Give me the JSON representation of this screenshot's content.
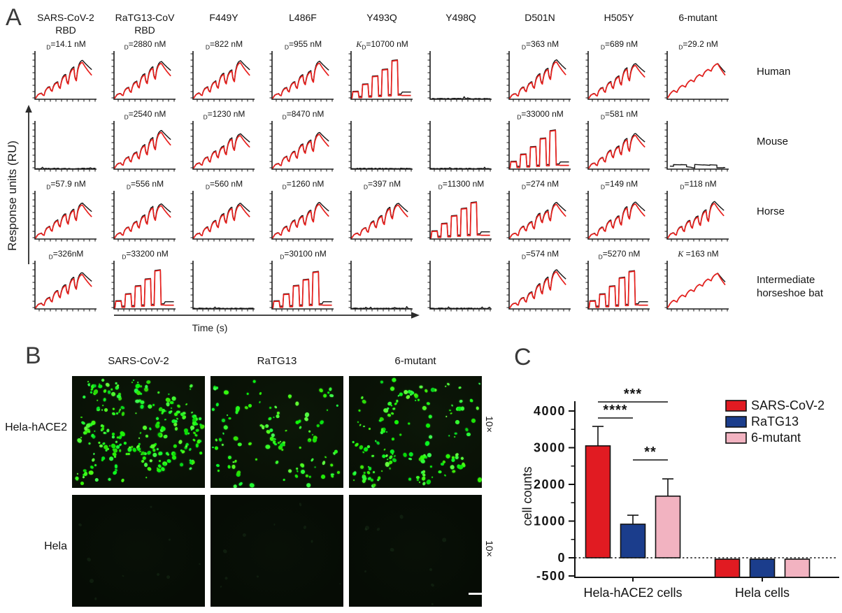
{
  "panel_a": {
    "label": "A",
    "y_axis_label": "Response units (RU)",
    "x_axis_label": "Time (s)",
    "col_headers": [
      [
        "SARS-CoV-2",
        "RBD"
      ],
      [
        "RaTG13-CoV",
        "RBD"
      ],
      [
        "F449Y"
      ],
      [
        "L486F"
      ],
      [
        "Y493Q"
      ],
      [
        "Y498Q"
      ],
      [
        "D501N"
      ],
      [
        "H505Y"
      ],
      [
        "6-mutant"
      ]
    ],
    "row_labels": [
      [
        "Human"
      ],
      [
        "Mouse"
      ],
      [
        "Horse"
      ],
      [
        "Intermediate",
        "horseshoe bat"
      ]
    ],
    "curve_colors": {
      "fit": "#e8201d",
      "data": "#161616"
    },
    "cells": [
      [
        {
          "kd_pre": "",
          "kd_sub": "D",
          "kd_val": "=14.1 nM",
          "curve": "kinetic"
        },
        {
          "kd_pre": "",
          "kd_sub": "D",
          "kd_val": "=2880 nM",
          "curve": "kinetic"
        },
        {
          "kd_pre": "",
          "kd_sub": "D",
          "kd_val": "=822 nM",
          "curve": "kinetic"
        },
        {
          "kd_pre": "",
          "kd_sub": "D",
          "kd_val": "=955 nM",
          "curve": "kinetic"
        },
        {
          "kd_pre": "K",
          "kd_sub": "D",
          "kd_val": "=10700 nM",
          "curve": "box"
        },
        {
          "kd_pre": "",
          "kd_sub": "",
          "kd_val": "",
          "curve": "flat"
        },
        {
          "kd_pre": "",
          "kd_sub": "D",
          "kd_val": "=363 nM",
          "curve": "kinetic"
        },
        {
          "kd_pre": "",
          "kd_sub": "D",
          "kd_val": "=689 nM",
          "curve": "kinetic"
        },
        {
          "kd_pre": "",
          "kd_sub": "D",
          "kd_val": "=29.2 nM",
          "curve": "rise"
        }
      ],
      [
        {
          "kd_pre": "",
          "kd_sub": "",
          "kd_val": "",
          "curve": "flat"
        },
        {
          "kd_pre": "",
          "kd_sub": "D",
          "kd_val": "=2540 nM",
          "curve": "kinetic"
        },
        {
          "kd_pre": "",
          "kd_sub": "D",
          "kd_val": "=1230 nM",
          "curve": "kinetic"
        },
        {
          "kd_pre": "",
          "kd_sub": "D",
          "kd_val": "=8470 nM",
          "curve": "kinetic"
        },
        {
          "kd_pre": "",
          "kd_sub": "",
          "kd_val": "",
          "curve": "flat"
        },
        {
          "kd_pre": "",
          "kd_sub": "",
          "kd_val": "",
          "curve": "flat"
        },
        {
          "kd_pre": "",
          "kd_sub": "D",
          "kd_val": "=33000 nM",
          "curve": "box"
        },
        {
          "kd_pre": "",
          "kd_sub": "D",
          "kd_val": "=581 nM",
          "curve": "kinetic"
        },
        {
          "kd_pre": "",
          "kd_sub": "",
          "kd_val": "",
          "curve": "steps"
        }
      ],
      [
        {
          "kd_pre": "",
          "kd_sub": "D",
          "kd_val": "=57.9 nM",
          "curve": "kinetic"
        },
        {
          "kd_pre": "",
          "kd_sub": "D",
          "kd_val": "=556 nM",
          "curve": "kinetic"
        },
        {
          "kd_pre": "",
          "kd_sub": "D",
          "kd_val": "=560 nM",
          "curve": "kinetic"
        },
        {
          "kd_pre": "",
          "kd_sub": "D",
          "kd_val": "=1260 nM",
          "curve": "kinetic"
        },
        {
          "kd_pre": "",
          "kd_sub": "D",
          "kd_val": "=397 nM",
          "curve": "kinetic"
        },
        {
          "kd_pre": "",
          "kd_sub": "D",
          "kd_val": "=11300 nM",
          "curve": "box"
        },
        {
          "kd_pre": "",
          "kd_sub": "D",
          "kd_val": "=274 nM",
          "curve": "kinetic"
        },
        {
          "kd_pre": "",
          "kd_sub": "D",
          "kd_val": "=149 nM",
          "curve": "kinetic"
        },
        {
          "kd_pre": "",
          "kd_sub": "D",
          "kd_val": "=118 nM",
          "curve": "kinetic"
        }
      ],
      [
        {
          "kd_pre": "",
          "kd_sub": "D",
          "kd_val": "=326nM",
          "curve": "kinetic"
        },
        {
          "kd_pre": "",
          "kd_sub": "D",
          "kd_val": "=33200 nM",
          "curve": "box"
        },
        {
          "kd_pre": "",
          "kd_sub": "",
          "kd_val": "",
          "curve": "flat"
        },
        {
          "kd_pre": "",
          "kd_sub": "D",
          "kd_val": "=30100 nM",
          "curve": "box"
        },
        {
          "kd_pre": "",
          "kd_sub": "",
          "kd_val": "",
          "curve": "flat"
        },
        {
          "kd_pre": "",
          "kd_sub": "",
          "kd_val": "",
          "curve": "flat"
        },
        {
          "kd_pre": "",
          "kd_sub": "D",
          "kd_val": "=574 nM",
          "curve": "kinetic"
        },
        {
          "kd_pre": "",
          "kd_sub": "D",
          "kd_val": "=5270 nM",
          "curve": "box"
        },
        {
          "kd_pre": "K",
          "kd_sub": "",
          "kd_val": " =163 nM",
          "curve": "rise"
        }
      ]
    ]
  },
  "panel_b": {
    "label": "B",
    "col_headers": [
      "SARS-CoV-2",
      "RaTG13",
      "6-mutant"
    ],
    "row_labels": [
      "Hela-hACE2",
      "Hela"
    ],
    "magnification": "10×",
    "dot_density": [
      270,
      115,
      160
    ]
  },
  "panel_c": {
    "label": "C"
  },
  "chart_data": [
    {
      "type": "table",
      "title": "",
      "units": "nM",
      "columns": [
        "SARS-CoV-2 RBD",
        "RaTG13-CoV RBD",
        "F449Y",
        "L486F",
        "Y493Q",
        "Y498Q",
        "D501N",
        "H505Y",
        "6-mutant"
      ],
      "rows": [
        {
          "label": "Human",
          "kd_nM": [
            14.1,
            2880,
            822,
            955,
            10700,
            null,
            363,
            689,
            29.2
          ]
        },
        {
          "label": "Mouse",
          "kd_nM": [
            null,
            2540,
            1230,
            8470,
            null,
            null,
            33000,
            581,
            null
          ]
        },
        {
          "label": "Horse",
          "kd_nM": [
            57.9,
            556,
            560,
            1260,
            397,
            11300,
            274,
            149,
            118
          ]
        },
        {
          "label": "Intermediate horseshoe bat",
          "kd_nM": [
            326,
            33200,
            null,
            30100,
            null,
            null,
            574,
            5270,
            163
          ]
        }
      ]
    },
    {
      "type": "bar",
      "title": "",
      "ylabel": "cell counts",
      "categories": [
        "Hela-hACE2 cells",
        "Hela cells"
      ],
      "series": [
        {
          "name": "SARS-CoV-2",
          "color": "#e11b22",
          "values": [
            3050,
            -50
          ],
          "errors": [
            530,
            0
          ]
        },
        {
          "name": "RaTG13",
          "color": "#1b3d8c",
          "values": [
            915,
            -50
          ],
          "errors": [
            245,
            0
          ]
        },
        {
          "name": "6-mutant",
          "color": "#f2b3c1",
          "values": [
            1680,
            -50
          ],
          "errors": [
            470,
            0
          ]
        }
      ],
      "ylim": [
        -500,
        4300
      ],
      "yticks": [
        4000,
        3000,
        2000,
        1000,
        0,
        -500
      ],
      "minor_yticks": [
        3500,
        2500,
        1500,
        500
      ],
      "baseline_dotted": true,
      "legend_position": "top-right",
      "significance": [
        {
          "series": [
            0,
            1
          ],
          "label": "****"
        },
        {
          "series": [
            0,
            2
          ],
          "label": "***"
        },
        {
          "series": [
            1,
            2
          ],
          "label": "**"
        }
      ]
    }
  ]
}
